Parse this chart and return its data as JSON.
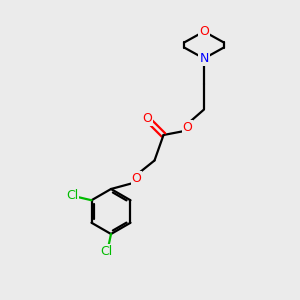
{
  "background_color": "#ebebeb",
  "bond_color": "#000000",
  "oxygen_color": "#ff0000",
  "nitrogen_color": "#0000ff",
  "chlorine_color": "#00bb00",
  "line_width": 1.6,
  "figsize": [
    3.0,
    3.0
  ],
  "dpi": 100,
  "xlim": [
    0,
    10
  ],
  "ylim": [
    0,
    10
  ]
}
